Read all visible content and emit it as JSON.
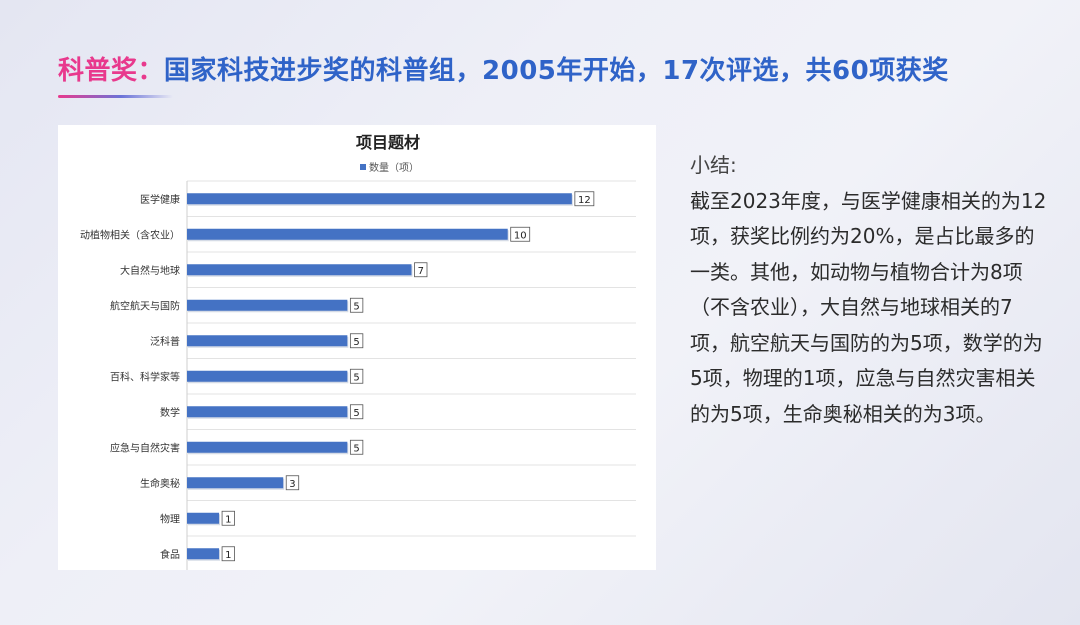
{
  "header": {
    "prefix": "科普奖：",
    "rest": "国家科技进步奖的科普组，2005年开始，17次评选，共60项获奖"
  },
  "chart_data": {
    "type": "bar",
    "orientation": "horizontal",
    "title": "项目题材",
    "legend": "数量（项）",
    "legend_position": "top",
    "categories": [
      "医学健康",
      "动植物相关（含农业）",
      "大自然与地球",
      "航空航天与国防",
      "泛科普",
      "百科、科学家等",
      "数学",
      "应急与自然灾害",
      "生命奥秘",
      "物理",
      "食品"
    ],
    "series": [
      {
        "name": "数量（项）",
        "values": [
          12,
          10,
          7,
          5,
          5,
          5,
          5,
          5,
          3,
          1,
          1
        ]
      }
    ],
    "xlim": [
      0,
      14
    ],
    "grid": true,
    "bar_color": "#4472c4"
  },
  "summary": {
    "title": "小结:",
    "body": "截至2023年度，与医学健康相关的为12项，获奖比例约为20%，是占比最多的一类。其他，如动物与植物合计为8项（不含农业），大自然与地球相关的7项，航空航天与国防的为5项，数学的为5项，物理的1项，应急与自然灾害相关的为5项，生命奥秘相关的为3项。"
  }
}
